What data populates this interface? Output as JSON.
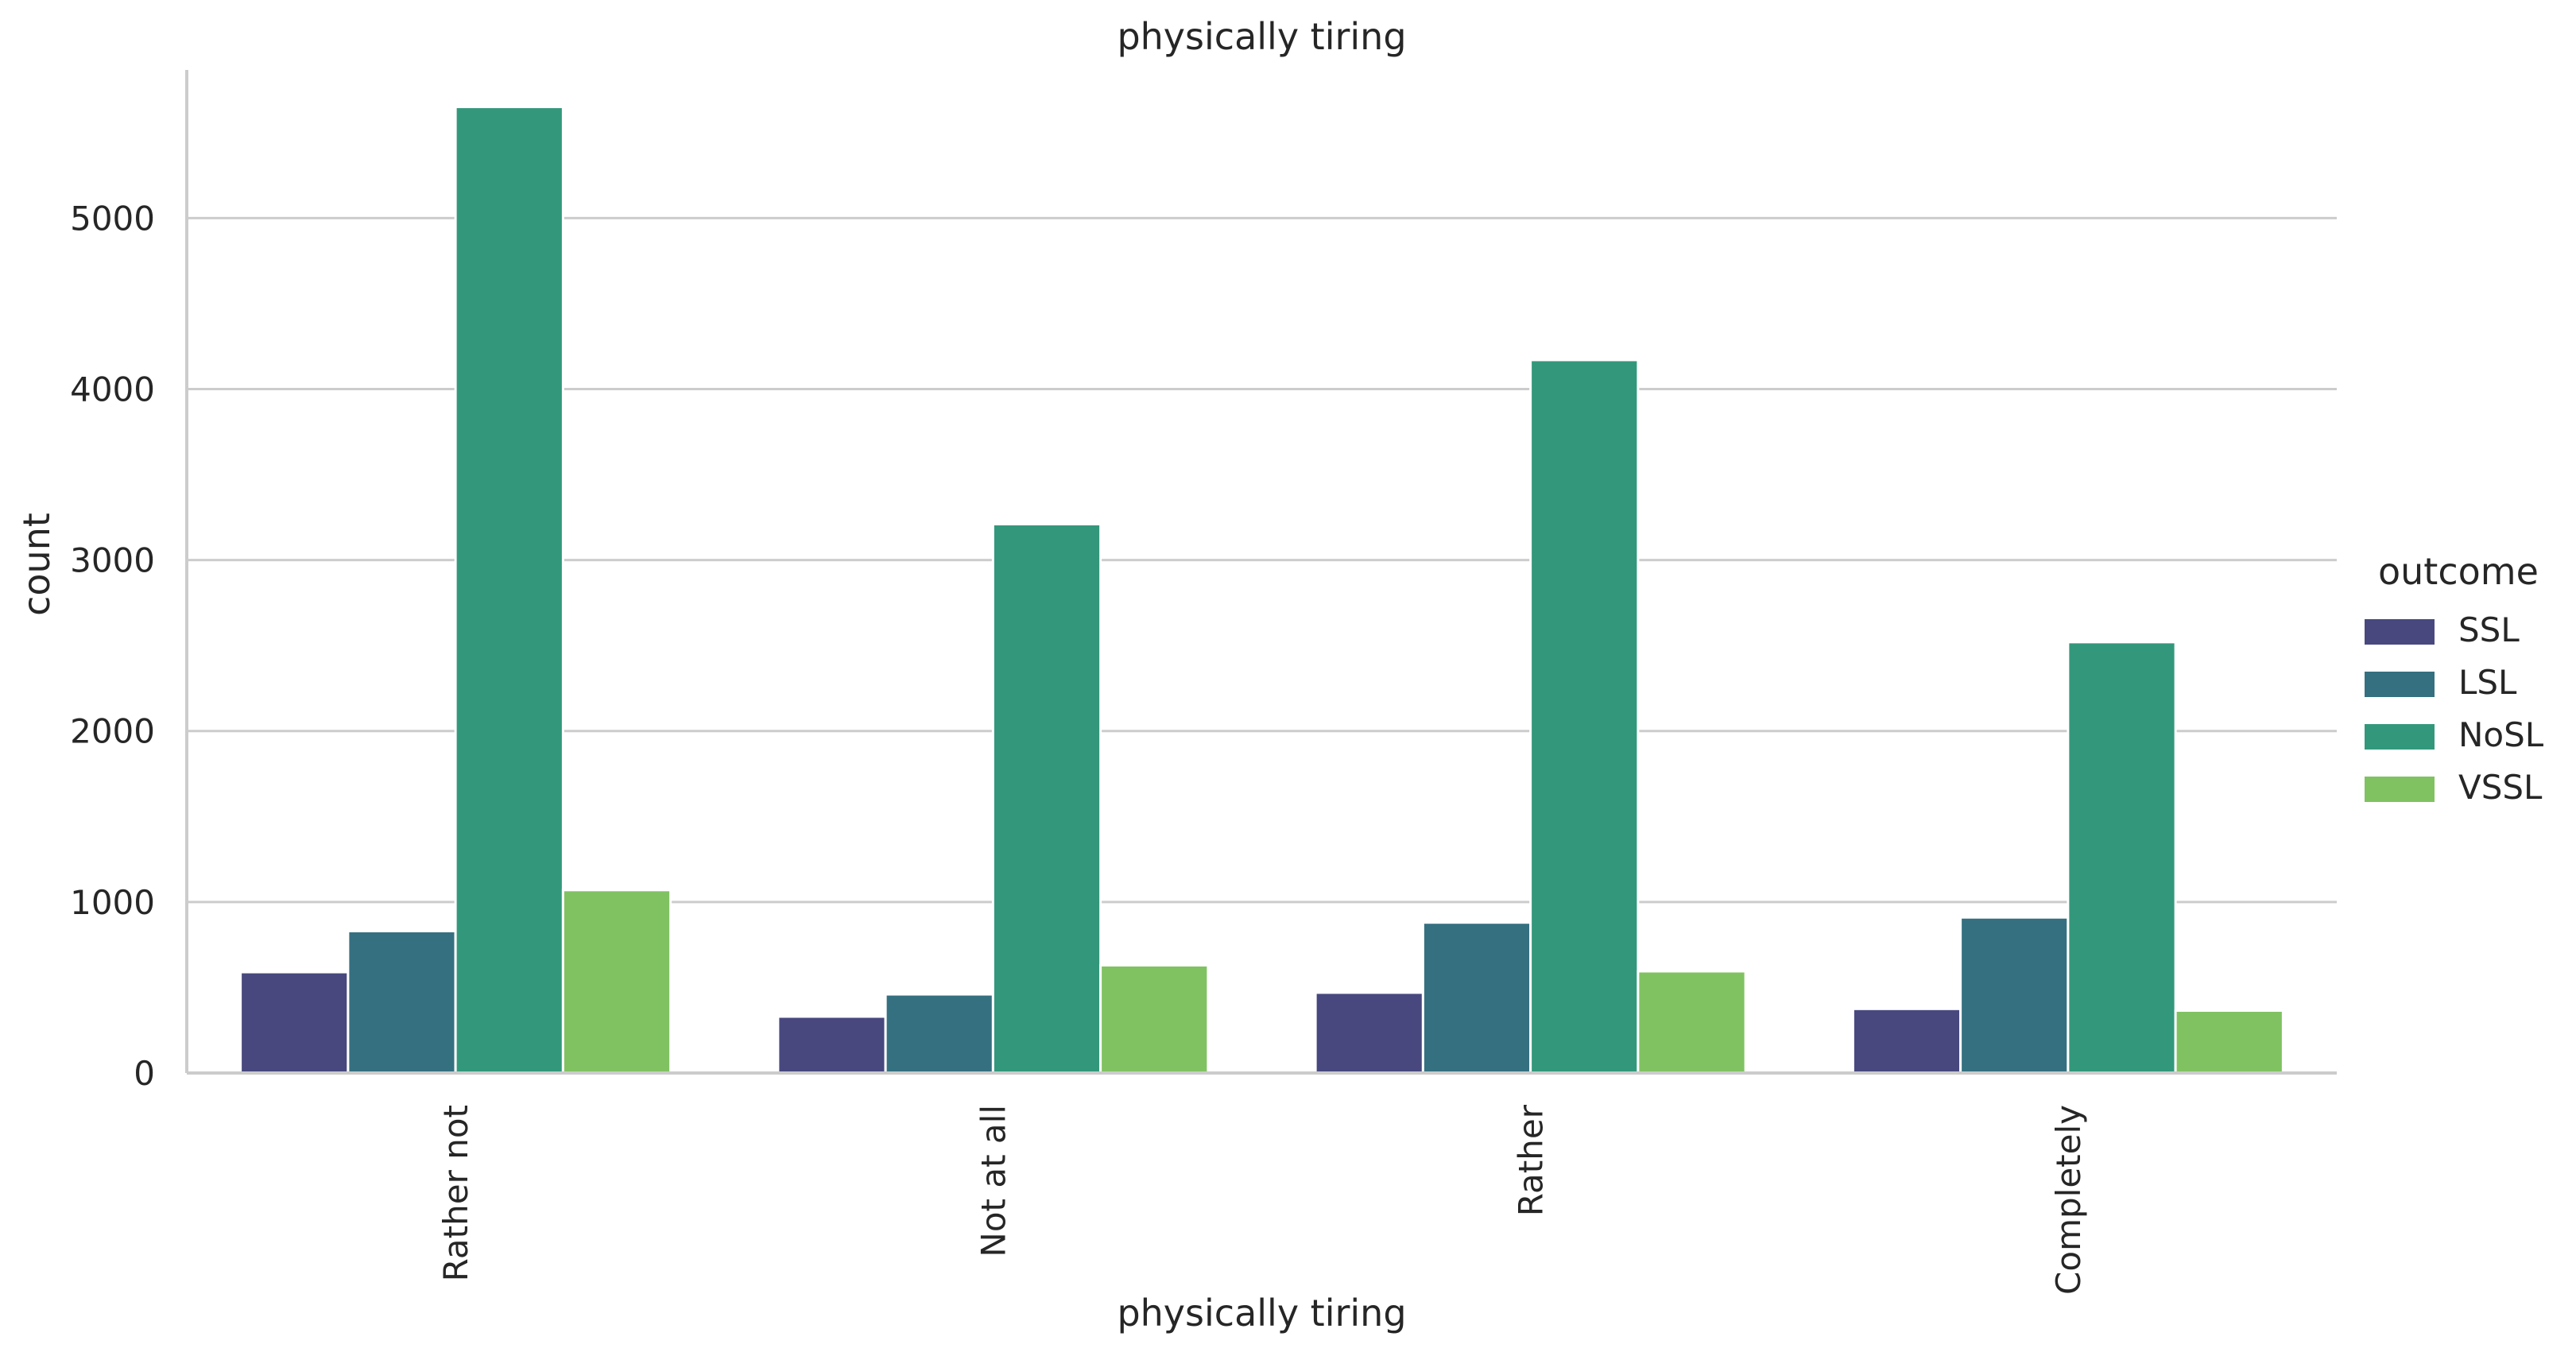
{
  "chart_data": {
    "type": "bar",
    "title": "physically tiring",
    "xlabel": "physically tiring",
    "ylabel": "count",
    "categories": [
      "Rather not",
      "Not at all",
      "Rather",
      "Completely"
    ],
    "ylim": [
      0,
      5950
    ],
    "yticks": [
      0,
      1000,
      2000,
      3000,
      4000,
      5000
    ],
    "grid": "horizontal",
    "legend": {
      "title": "outcome",
      "placement": "right"
    },
    "series": [
      {
        "name": "SSL",
        "color": "#48487f",
        "values": [
          590,
          330,
          470,
          375
        ]
      },
      {
        "name": "LSL",
        "color": "#357080",
        "values": [
          830,
          460,
          880,
          910
        ]
      },
      {
        "name": "NoSL",
        "color": "#33987b",
        "values": [
          5650,
          3210,
          4170,
          2520
        ]
      },
      {
        "name": "VSSL",
        "color": "#80c262",
        "values": [
          1070,
          630,
          595,
          365
        ]
      }
    ]
  }
}
